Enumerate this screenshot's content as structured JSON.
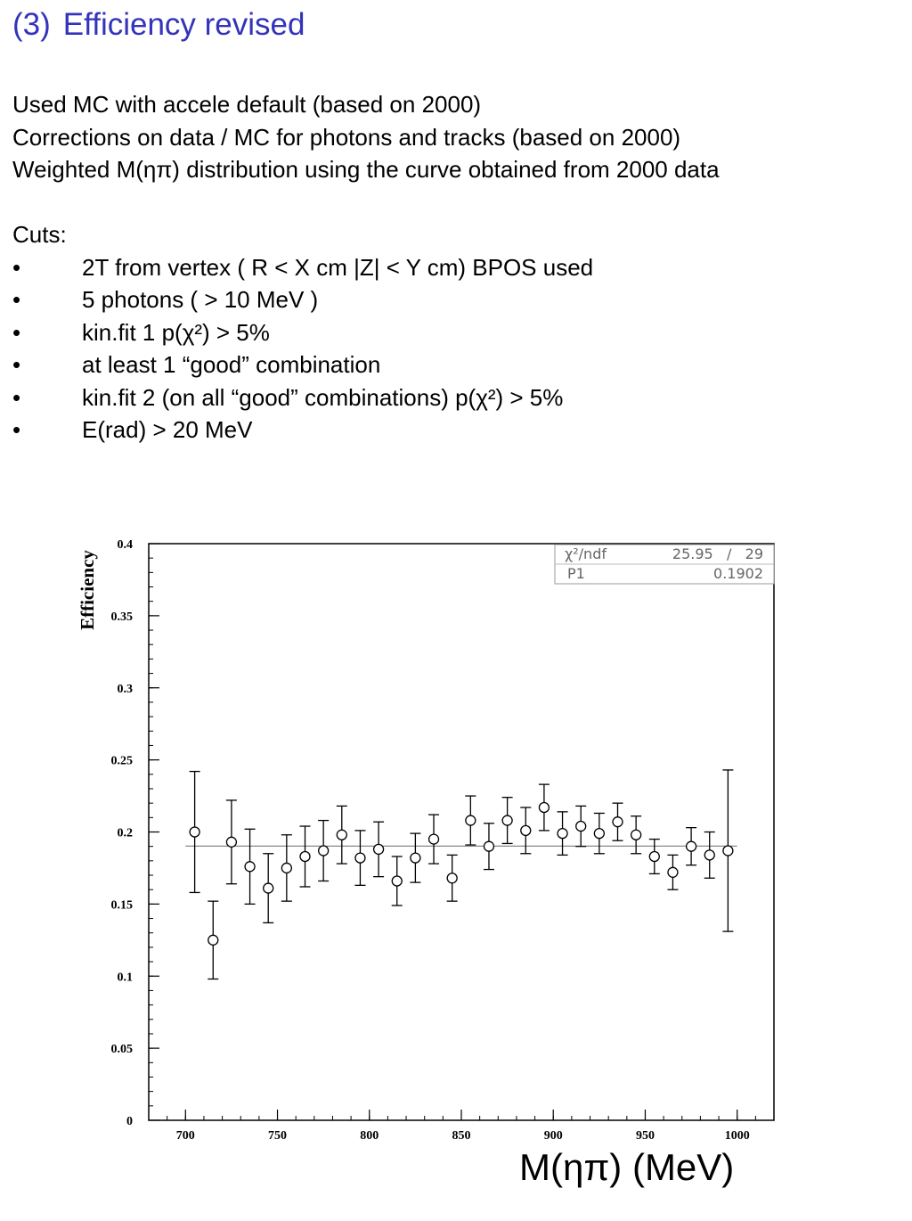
{
  "slide": {
    "title_number": "(3)",
    "title_text": "Efficiency revised",
    "intro": [
      "Used MC with accele default (based on 2000)",
      "Corrections on data / MC for photons and tracks (based on 2000)",
      "Weighted M(ηπ) distribution using the curve obtained from 2000 data"
    ],
    "cuts_label": "Cuts:",
    "bullet_char": "•",
    "cuts": [
      "2T from vertex ( R < X cm   |Z| <  Y cm)  BPOS used",
      "5 photons ( > 10 MeV )",
      "kin.fit 1 p(χ²) > 5%",
      "at least 1 “good” combination",
      "kin.fit 2 (on all “good” combinations)  p(χ²) > 5%",
      "E(rad) > 20 MeV"
    ]
  },
  "chart_data": {
    "type": "scatter",
    "ylabel": "Efficiency",
    "xlabel": "M(ηπ) (MeV)",
    "xlim": [
      680,
      1020
    ],
    "ylim": [
      0,
      0.4
    ],
    "x_ticks": [
      700,
      750,
      800,
      850,
      900,
      950,
      1000
    ],
    "y_ticks": [
      0,
      0.05,
      0.1,
      0.15,
      0.2,
      0.25,
      0.3,
      0.35,
      0.4
    ],
    "x_tick_labels": [
      "700",
      "750",
      "800",
      "850",
      "900",
      "950",
      "1000"
    ],
    "y_tick_labels": [
      "0",
      "0.05",
      "0.1",
      "0.15",
      "0.2",
      "0.25",
      "0.3",
      "0.35",
      "0.4"
    ],
    "fit_value": 0.1902,
    "stats_box": {
      "row1_label": "χ²/ndf",
      "row1_value": "25.95   /   29",
      "row2_label": "P1",
      "row2_value": "0.1902"
    },
    "points": [
      {
        "x": 705,
        "y": 0.2,
        "err": 0.042
      },
      {
        "x": 715,
        "y": 0.125,
        "err": 0.027
      },
      {
        "x": 725,
        "y": 0.193,
        "err": 0.029
      },
      {
        "x": 735,
        "y": 0.176,
        "err": 0.026
      },
      {
        "x": 745,
        "y": 0.161,
        "err": 0.024
      },
      {
        "x": 755,
        "y": 0.175,
        "err": 0.023
      },
      {
        "x": 765,
        "y": 0.183,
        "err": 0.021
      },
      {
        "x": 775,
        "y": 0.187,
        "err": 0.021
      },
      {
        "x": 785,
        "y": 0.198,
        "err": 0.02
      },
      {
        "x": 795,
        "y": 0.182,
        "err": 0.019
      },
      {
        "x": 805,
        "y": 0.188,
        "err": 0.019
      },
      {
        "x": 815,
        "y": 0.166,
        "err": 0.017
      },
      {
        "x": 825,
        "y": 0.182,
        "err": 0.017
      },
      {
        "x": 835,
        "y": 0.195,
        "err": 0.017
      },
      {
        "x": 845,
        "y": 0.168,
        "err": 0.016
      },
      {
        "x": 855,
        "y": 0.208,
        "err": 0.017
      },
      {
        "x": 865,
        "y": 0.19,
        "err": 0.016
      },
      {
        "x": 875,
        "y": 0.208,
        "err": 0.016
      },
      {
        "x": 885,
        "y": 0.201,
        "err": 0.016
      },
      {
        "x": 895,
        "y": 0.217,
        "err": 0.016
      },
      {
        "x": 905,
        "y": 0.199,
        "err": 0.015
      },
      {
        "x": 915,
        "y": 0.204,
        "err": 0.014
      },
      {
        "x": 925,
        "y": 0.199,
        "err": 0.014
      },
      {
        "x": 935,
        "y": 0.207,
        "err": 0.013
      },
      {
        "x": 945,
        "y": 0.198,
        "err": 0.013
      },
      {
        "x": 955,
        "y": 0.183,
        "err": 0.012
      },
      {
        "x": 965,
        "y": 0.172,
        "err": 0.012
      },
      {
        "x": 975,
        "y": 0.19,
        "err": 0.013
      },
      {
        "x": 985,
        "y": 0.184,
        "err": 0.016
      },
      {
        "x": 995,
        "y": 0.187,
        "err": 0.056
      }
    ]
  }
}
